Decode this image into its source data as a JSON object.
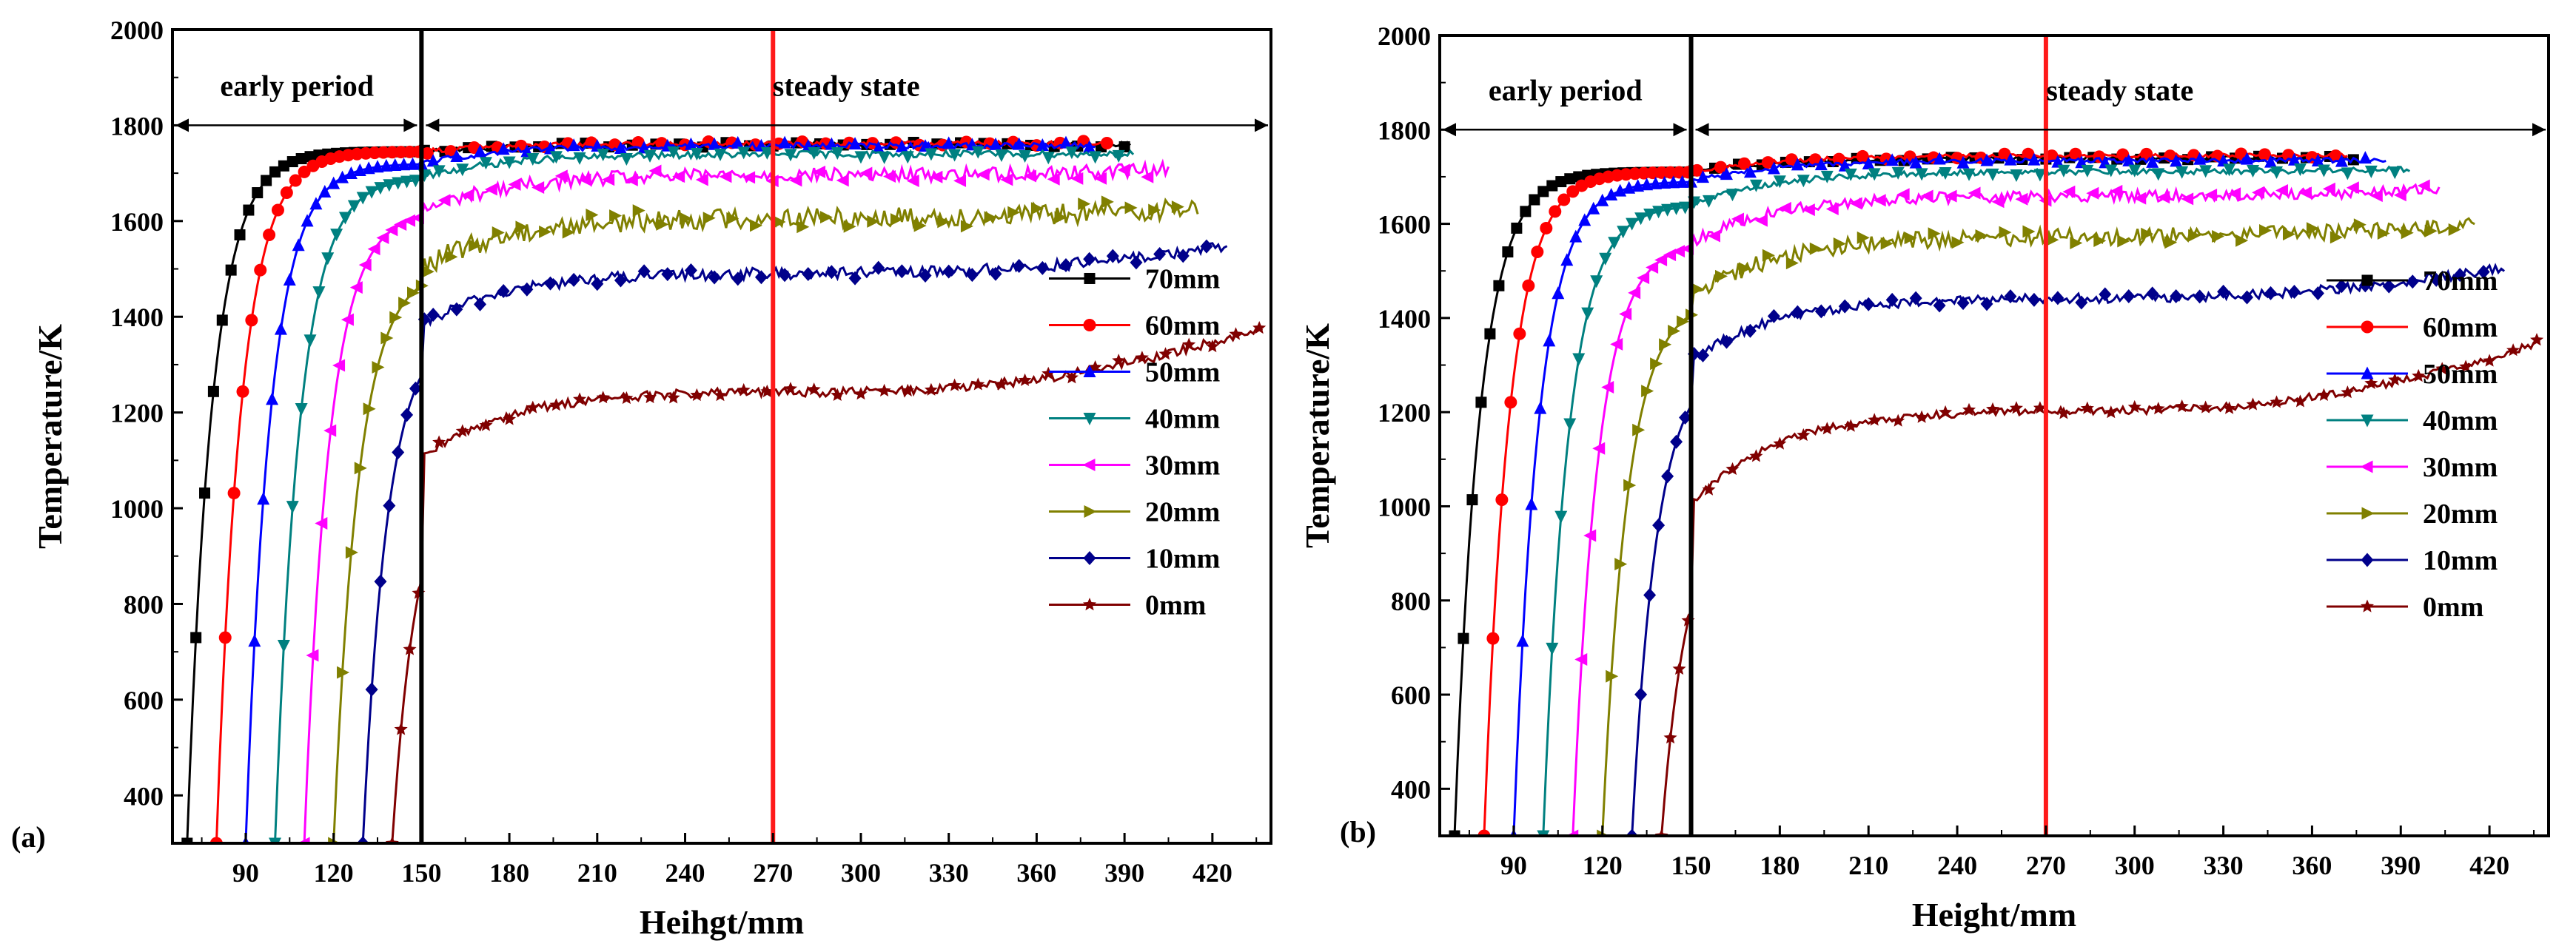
{
  "figure": {
    "panels": [
      "(a)",
      "(b)"
    ]
  },
  "chart_data": [
    {
      "type": "line",
      "panel_label": "(a)",
      "xlabel": "Heihgt/mm",
      "ylabel": "Temperature/K",
      "xlim": [
        65,
        440
      ],
      "ylim": [
        300,
        2000
      ],
      "xticks": [
        90,
        120,
        150,
        180,
        210,
        240,
        270,
        300,
        330,
        360,
        390,
        420
      ],
      "yticks": [
        400,
        600,
        800,
        1000,
        1200,
        1400,
        1600,
        1800,
        2000
      ],
      "legend_position": "lower-right",
      "annotations": {
        "early": "early period",
        "steady": "steady state",
        "boundary_x": 150,
        "marker_x": 270,
        "arrow_y": 1800
      },
      "series": [
        {
          "name": "70mm",
          "color": "#000000",
          "marker": "square",
          "start": 70,
          "bulk": 1760,
          "end": 392,
          "noise": 5,
          "rise": 0,
          "early_level": 1745
        },
        {
          "name": "60mm",
          "color": "#ff0000",
          "marker": "circle",
          "start": 80,
          "bulk": 1762,
          "end": 385,
          "noise": 5,
          "rise": 0,
          "early_level": 1745
        },
        {
          "name": "50mm",
          "color": "#0000ff",
          "marker": "tri-up",
          "start": 90,
          "bulk": 1758,
          "end": 380,
          "noise": 6,
          "rise": 0,
          "early_level": 1720
        },
        {
          "name": "40mm",
          "color": "#008080",
          "marker": "tri-down",
          "start": 100,
          "bulk": 1740,
          "end": 393,
          "noise": 7,
          "rise": 0,
          "early_level": 1690
        },
        {
          "name": "30mm",
          "color": "#ff00ff",
          "marker": "tri-left",
          "start": 110,
          "bulk": 1705,
          "end": 405,
          "noise": 15,
          "rise": 20,
          "early_level": 1620
        },
        {
          "name": "20mm",
          "color": "#808000",
          "marker": "tri-right",
          "start": 120,
          "bulk": 1620,
          "end": 415,
          "noise": 22,
          "rise": 30,
          "early_level": 1500
        },
        {
          "name": "10mm",
          "color": "#00008b",
          "marker": "diamond",
          "start": 130,
          "bulk": 1520,
          "end": 425,
          "noise": 12,
          "rise": 70,
          "early_level": 1380
        },
        {
          "name": "0mm",
          "color": "#800000",
          "marker": "star",
          "start": 140,
          "bulk": 1300,
          "end": 437,
          "noise": 10,
          "rise": 140,
          "early_level": 1100
        }
      ]
    },
    {
      "type": "line",
      "panel_label": "(b)",
      "xlabel": "Height/mm",
      "ylabel": "Temperature/K",
      "xlim": [
        65,
        440
      ],
      "ylim": [
        300,
        2000
      ],
      "xticks": [
        90,
        120,
        150,
        180,
        210,
        240,
        270,
        300,
        330,
        360,
        390,
        420
      ],
      "yticks": [
        400,
        600,
        800,
        1000,
        1200,
        1400,
        1600,
        1800,
        2000
      ],
      "legend_position": "lower-right",
      "annotations": {
        "early": "early period",
        "steady": "steady state",
        "boundary_x": 150,
        "marker_x": 270,
        "arrow_y": 1800
      },
      "series": [
        {
          "name": "70mm",
          "color": "#000000",
          "marker": "square",
          "start": 70,
          "bulk": 1740,
          "end": 375,
          "noise": 4,
          "rise": 0,
          "early_level": 1710
        },
        {
          "name": "60mm",
          "color": "#ff0000",
          "marker": "circle",
          "start": 80,
          "bulk": 1745,
          "end": 372,
          "noise": 4,
          "rise": 0,
          "early_level": 1710
        },
        {
          "name": "50mm",
          "color": "#0000ff",
          "marker": "tri-up",
          "start": 90,
          "bulk": 1735,
          "end": 385,
          "noise": 5,
          "rise": 0,
          "early_level": 1690
        },
        {
          "name": "40mm",
          "color": "#008080",
          "marker": "tri-down",
          "start": 100,
          "bulk": 1715,
          "end": 393,
          "noise": 6,
          "rise": 10,
          "early_level": 1640
        },
        {
          "name": "30mm",
          "color": "#ff00ff",
          "marker": "tri-left",
          "start": 110,
          "bulk": 1670,
          "end": 403,
          "noise": 12,
          "rise": 25,
          "early_level": 1560
        },
        {
          "name": "20mm",
          "color": "#808000",
          "marker": "tri-right",
          "start": 120,
          "bulk": 1590,
          "end": 415,
          "noise": 18,
          "rise": 40,
          "early_level": 1440
        },
        {
          "name": "10mm",
          "color": "#00008b",
          "marker": "diamond",
          "start": 130,
          "bulk": 1475,
          "end": 425,
          "noise": 10,
          "rise": 80,
          "early_level": 1310
        },
        {
          "name": "0mm",
          "color": "#800000",
          "marker": "star",
          "start": 140,
          "bulk": 1265,
          "end": 437,
          "noise": 8,
          "rise": 150,
          "early_level": 1000
        }
      ]
    }
  ]
}
